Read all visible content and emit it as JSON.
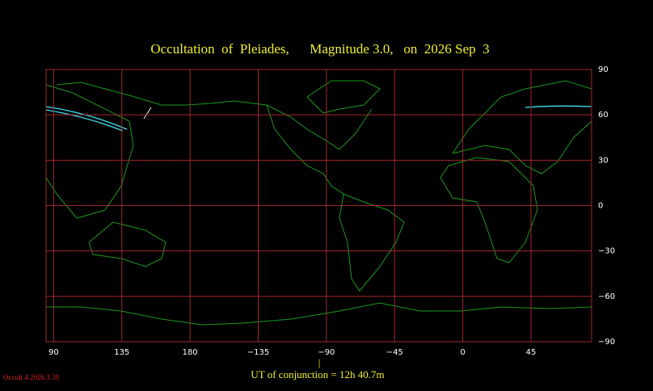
{
  "map": {
    "title": "Occultation  of  Pleiades,      Magnitude 3.0,   on  2026 Sep  3",
    "xlim": [
      85,
      445
    ],
    "ylim": [
      -90,
      90
    ],
    "xticks": [
      90,
      135,
      180,
      {
        "value": -135,
        "label": "−135"
      },
      {
        "value": -90,
        "label": "−90"
      },
      {
        "value": -45,
        "label": "−45"
      },
      0,
      45
    ],
    "yticks": [
      90,
      60,
      30,
      0,
      {
        "value": -30,
        "label": "−30"
      },
      {
        "value": -60,
        "label": "−60"
      },
      {
        "value": -90,
        "label": "−90"
      }
    ],
    "conjunction_marker": "|",
    "conjunction": "UT of conjunction = 12h 40.7m",
    "version": "Occult 4.2026.3.30"
  }
}
